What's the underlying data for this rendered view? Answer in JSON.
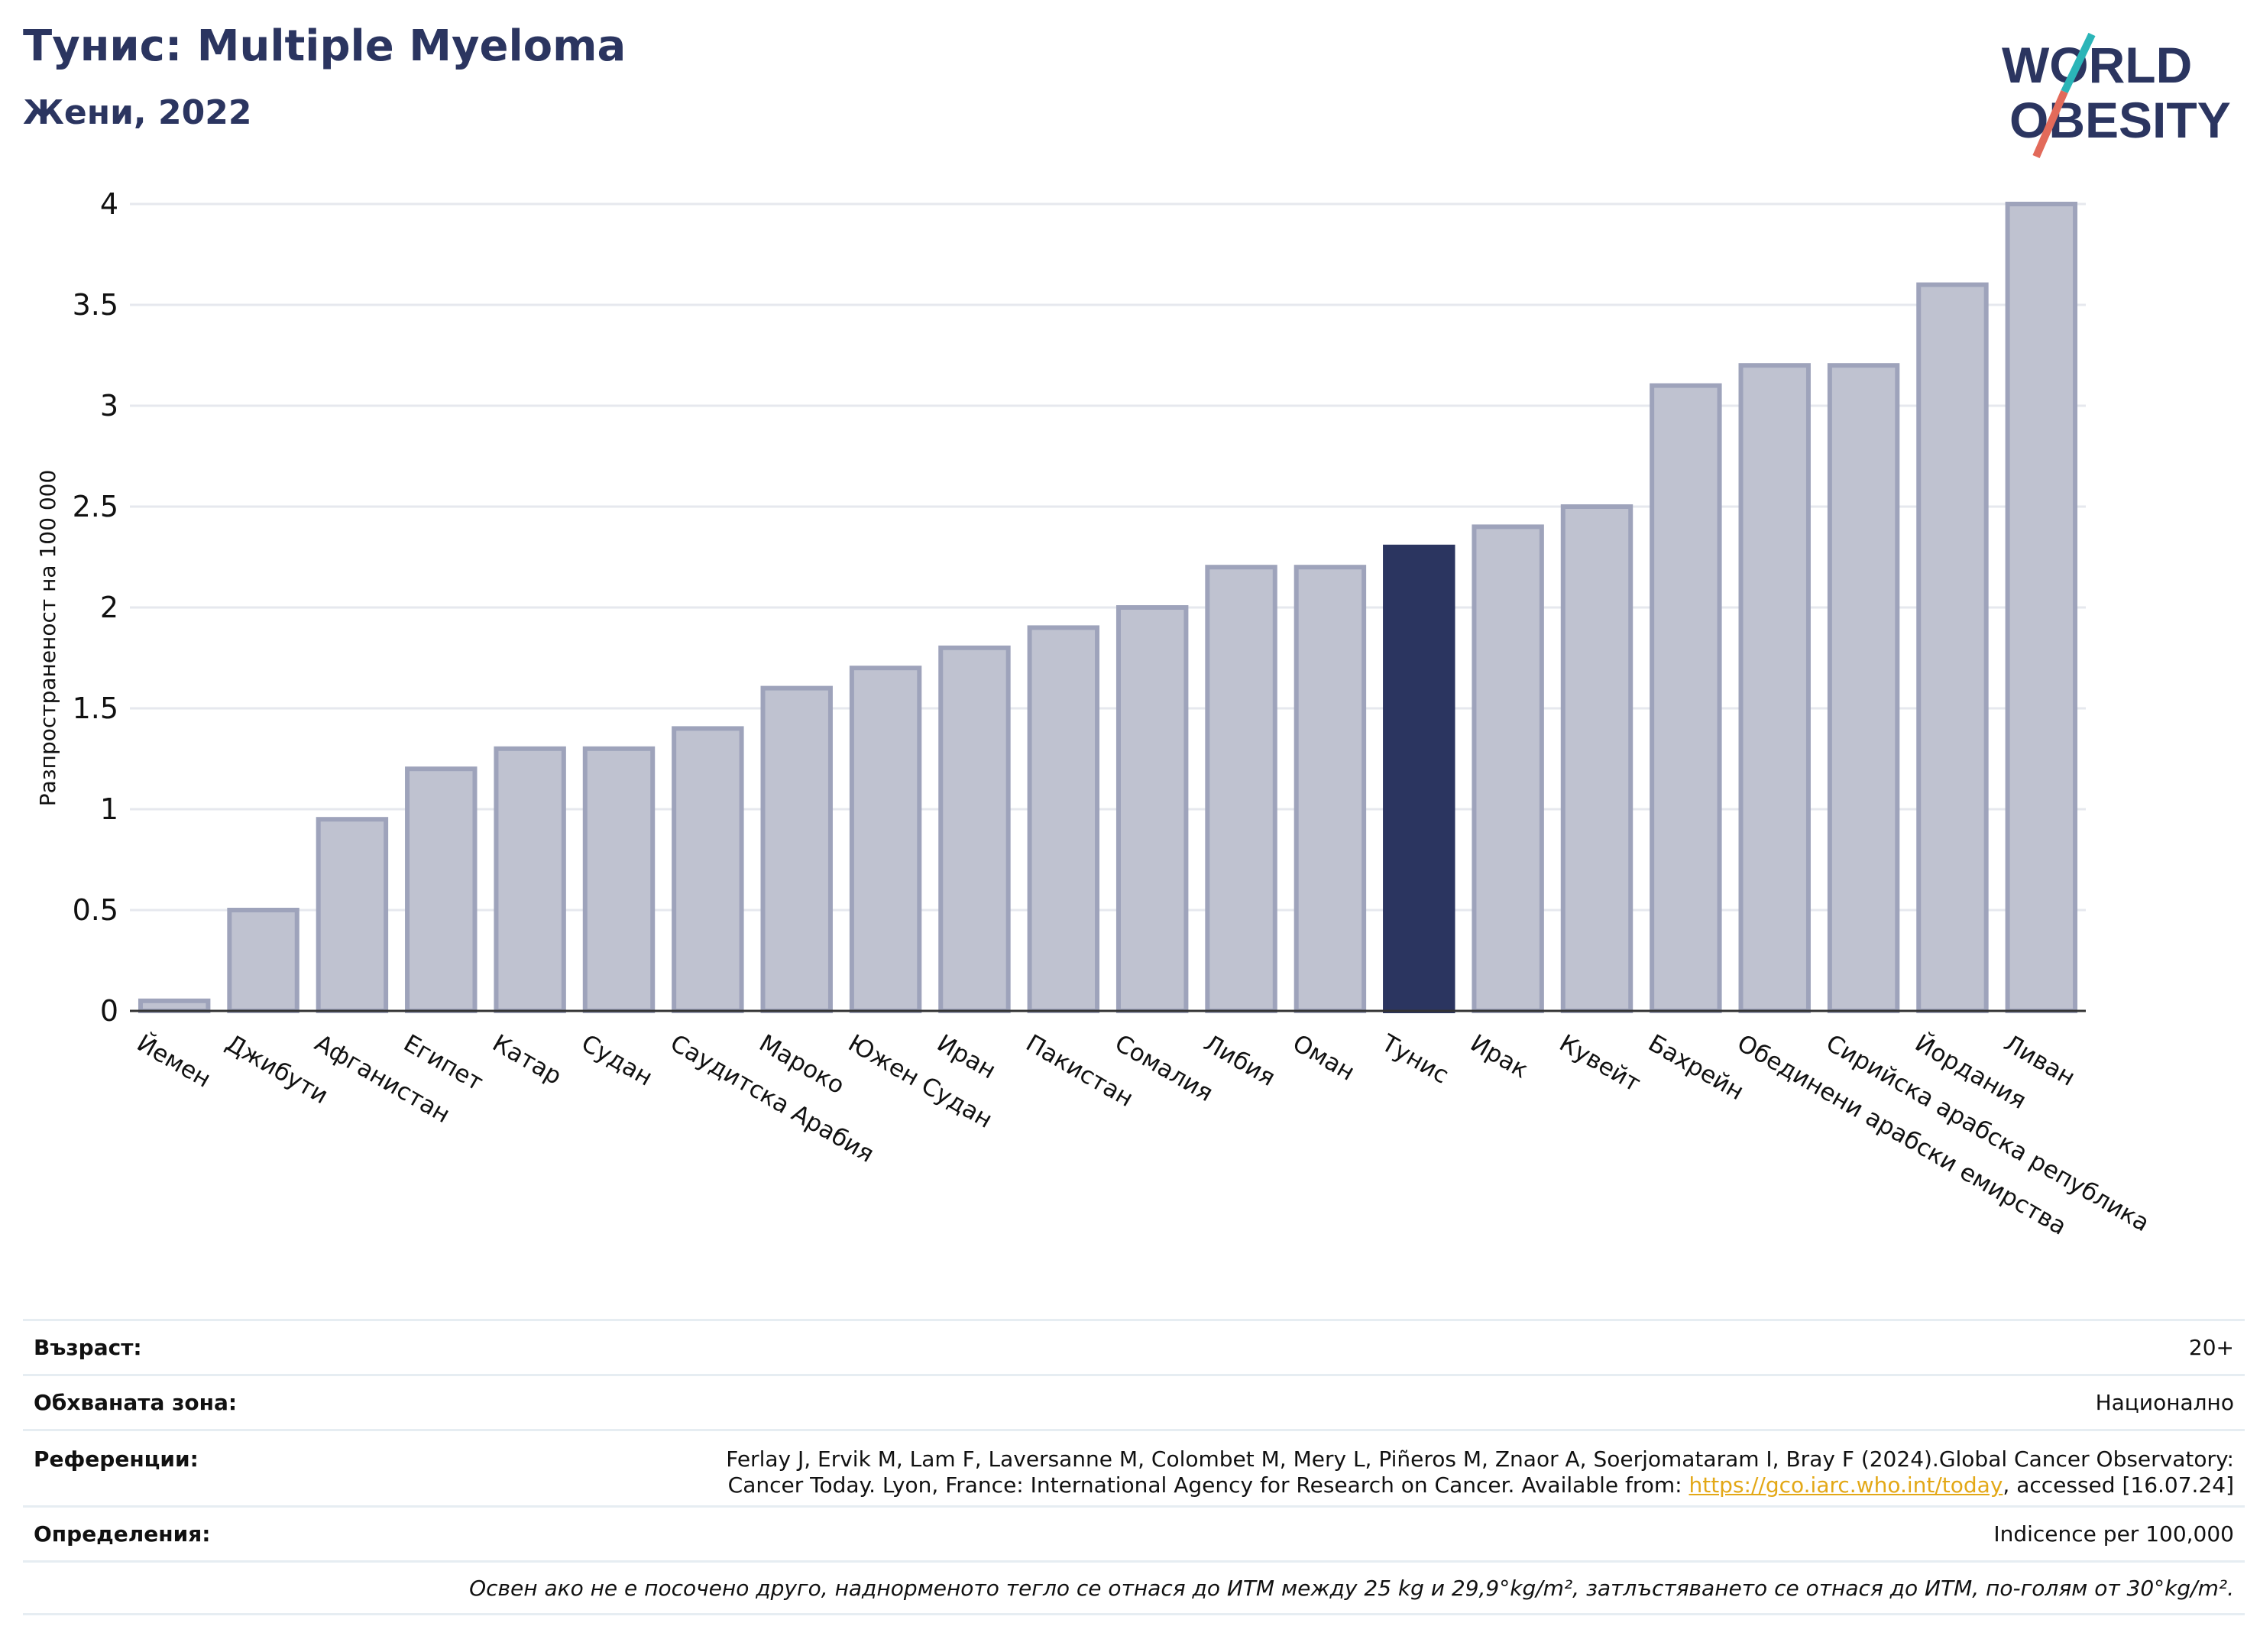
{
  "header": {
    "title": "Тунис: Multiple Myeloma",
    "subtitle": "Жени, 2022"
  },
  "logo": {
    "line1": "WORLD",
    "line2": "OBESITY",
    "colors": {
      "navy": "#2b3560",
      "teal": "#2bb5b8",
      "coral": "#e26a5a"
    }
  },
  "colors": {
    "bar": "#bfc2d0",
    "bar_border": "#9ea3bb",
    "highlight": "#2b3560",
    "grid": "#e6e8ee",
    "axis": "#333333"
  },
  "chart_data": {
    "type": "bar",
    "ylabel": "Разпространеност  на 100 000",
    "ylim": [
      0,
      4
    ],
    "yticks": [
      "0",
      "0.5",
      "1",
      "1.5",
      "2",
      "2.5",
      "3",
      "3.5",
      "4"
    ],
    "grid": true,
    "highlight": "Тунис",
    "categories": [
      "Йемен",
      "Джибути",
      "Афганистан",
      "Египет",
      "Катар",
      "Судан",
      "Саудитска Арабия",
      "Мароко",
      "Южен Судан",
      "Иран",
      "Пакистан",
      "Сомалия",
      "Либия",
      "Оман",
      "Тунис",
      "Ирак",
      "Кувейт",
      "Бахрейн",
      "Обединени арабски емирства",
      "Сирийска арабска република",
      "Йордания",
      "Ливан"
    ],
    "values": [
      0.05,
      0.5,
      0.95,
      1.2,
      1.3,
      1.3,
      1.4,
      1.6,
      1.7,
      1.8,
      1.9,
      2.0,
      2.2,
      2.2,
      2.3,
      2.4,
      2.5,
      3.1,
      3.2,
      3.2,
      3.6,
      4.0
    ]
  },
  "info": {
    "age_label": "Възраст:",
    "age_value": "20+",
    "area_label": "Обхваната зона:",
    "area_value": "Национално",
    "refs_label": "Референции:",
    "refs_line1": "Ferlay J, Ervik M, Lam F, Laversanne M, Colombet M, Mery L, Piñeros M, Znaor A, Soerjomataram I, Bray F (2024).Global Cancer Observatory:",
    "refs_line2_pre": "Cancer Today. Lyon, France: International Agency for Research on Cancer. Available from: ",
    "refs_link": "https://gco.iarc.who.int/today",
    "refs_line2_post": ", accessed [16.07.24]",
    "def_label": "Определения:",
    "def_value": "Indicence per 100,000",
    "note": "Освен ако не е посочено друго, наднорменото тегло се отнася до ИТМ между 25 kg и 29,9°kg/m², затлъстяването се отнася до ИТМ, по-голям от 30°kg/m²."
  }
}
